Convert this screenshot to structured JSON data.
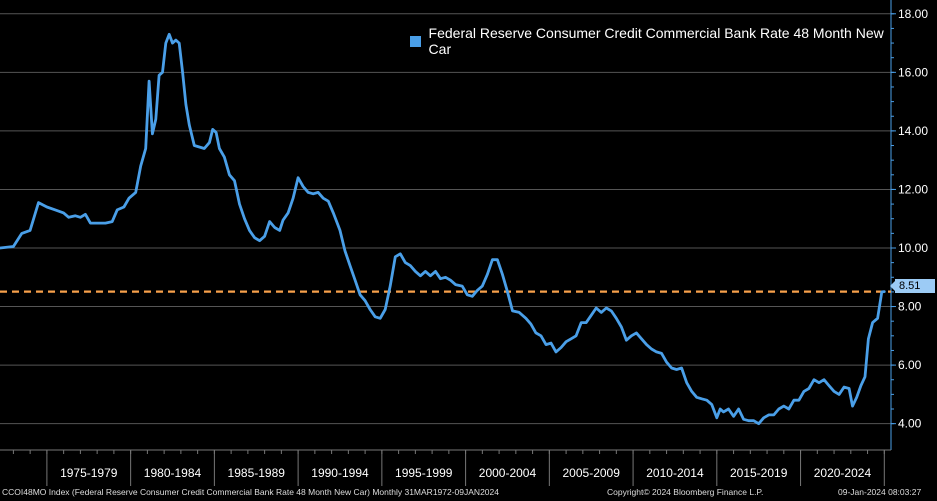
{
  "chart_data": {
    "type": "line",
    "series": [
      {
        "name": "Federal Reserve Consumer Credit Commercial Bank Rate 48 Month New Car",
        "color": "#4a9fe8",
        "points": [
          [
            1972.2,
            10.0
          ],
          [
            1973.0,
            10.05
          ],
          [
            1973.5,
            10.5
          ],
          [
            1974.0,
            10.6
          ],
          [
            1974.5,
            11.55
          ],
          [
            1975.0,
            11.4
          ],
          [
            1975.5,
            11.3
          ],
          [
            1976.0,
            11.2
          ],
          [
            1976.3,
            11.05
          ],
          [
            1976.7,
            11.1
          ],
          [
            1977.0,
            11.05
          ],
          [
            1977.3,
            11.15
          ],
          [
            1977.6,
            10.85
          ],
          [
            1978.0,
            10.85
          ],
          [
            1978.5,
            10.85
          ],
          [
            1978.9,
            10.9
          ],
          [
            1979.2,
            11.3
          ],
          [
            1979.6,
            11.4
          ],
          [
            1979.9,
            11.7
          ],
          [
            1980.3,
            11.9
          ],
          [
            1980.6,
            12.8
          ],
          [
            1980.9,
            13.4
          ],
          [
            1981.1,
            15.7
          ],
          [
            1981.3,
            13.9
          ],
          [
            1981.5,
            14.4
          ],
          [
            1981.7,
            15.9
          ],
          [
            1981.9,
            16.0
          ],
          [
            1982.1,
            17.0
          ],
          [
            1982.3,
            17.3
          ],
          [
            1982.5,
            17.0
          ],
          [
            1982.7,
            17.1
          ],
          [
            1982.9,
            17.0
          ],
          [
            1983.1,
            16.0
          ],
          [
            1983.3,
            14.9
          ],
          [
            1983.5,
            14.2
          ],
          [
            1983.8,
            13.5
          ],
          [
            1984.1,
            13.45
          ],
          [
            1984.4,
            13.4
          ],
          [
            1984.7,
            13.6
          ],
          [
            1984.9,
            14.05
          ],
          [
            1985.1,
            13.95
          ],
          [
            1985.3,
            13.4
          ],
          [
            1985.6,
            13.1
          ],
          [
            1985.9,
            12.5
          ],
          [
            1986.2,
            12.3
          ],
          [
            1986.5,
            11.5
          ],
          [
            1986.8,
            11.0
          ],
          [
            1987.1,
            10.6
          ],
          [
            1987.4,
            10.35
          ],
          [
            1987.7,
            10.25
          ],
          [
            1988.0,
            10.4
          ],
          [
            1988.3,
            10.9
          ],
          [
            1988.6,
            10.7
          ],
          [
            1988.9,
            10.6
          ],
          [
            1989.1,
            10.95
          ],
          [
            1989.4,
            11.2
          ],
          [
            1989.7,
            11.7
          ],
          [
            1990.0,
            12.4
          ],
          [
            1990.3,
            12.1
          ],
          [
            1990.6,
            11.9
          ],
          [
            1990.9,
            11.85
          ],
          [
            1991.2,
            11.9
          ],
          [
            1991.5,
            11.7
          ],
          [
            1991.8,
            11.6
          ],
          [
            1992.1,
            11.2
          ],
          [
            1992.5,
            10.6
          ],
          [
            1992.8,
            9.9
          ],
          [
            1993.1,
            9.4
          ],
          [
            1993.4,
            8.9
          ],
          [
            1993.7,
            8.4
          ],
          [
            1994.0,
            8.2
          ],
          [
            1994.3,
            7.9
          ],
          [
            1994.6,
            7.65
          ],
          [
            1994.9,
            7.6
          ],
          [
            1995.2,
            7.9
          ],
          [
            1995.5,
            8.7
          ],
          [
            1995.8,
            9.7
          ],
          [
            1996.1,
            9.8
          ],
          [
            1996.4,
            9.5
          ],
          [
            1996.7,
            9.4
          ],
          [
            1997.0,
            9.2
          ],
          [
            1997.3,
            9.05
          ],
          [
            1997.6,
            9.2
          ],
          [
            1997.9,
            9.05
          ],
          [
            1998.2,
            9.2
          ],
          [
            1998.5,
            8.95
          ],
          [
            1998.8,
            9.0
          ],
          [
            1999.1,
            8.9
          ],
          [
            1999.4,
            8.75
          ],
          [
            1999.8,
            8.7
          ],
          [
            2000.1,
            8.4
          ],
          [
            2000.4,
            8.35
          ],
          [
            2000.7,
            8.55
          ],
          [
            2001.0,
            8.7
          ],
          [
            2001.3,
            9.1
          ],
          [
            2001.6,
            9.6
          ],
          [
            2001.9,
            9.6
          ],
          [
            2002.2,
            9.1
          ],
          [
            2002.5,
            8.5
          ],
          [
            2002.8,
            7.85
          ],
          [
            2003.2,
            7.8
          ],
          [
            2003.6,
            7.6
          ],
          [
            2003.9,
            7.4
          ],
          [
            2004.2,
            7.1
          ],
          [
            2004.5,
            7.0
          ],
          [
            2004.8,
            6.7
          ],
          [
            2005.1,
            6.75
          ],
          [
            2005.4,
            6.45
          ],
          [
            2005.7,
            6.6
          ],
          [
            2006.0,
            6.8
          ],
          [
            2006.3,
            6.9
          ],
          [
            2006.6,
            7.0
          ],
          [
            2006.9,
            7.45
          ],
          [
            2007.2,
            7.45
          ],
          [
            2007.5,
            7.7
          ],
          [
            2007.8,
            7.95
          ],
          [
            2008.1,
            7.8
          ],
          [
            2008.4,
            7.95
          ],
          [
            2008.7,
            7.85
          ],
          [
            2009.0,
            7.6
          ],
          [
            2009.3,
            7.3
          ],
          [
            2009.6,
            6.85
          ],
          [
            2009.9,
            7.0
          ],
          [
            2010.2,
            7.1
          ],
          [
            2010.5,
            6.9
          ],
          [
            2010.8,
            6.7
          ],
          [
            2011.1,
            6.55
          ],
          [
            2011.4,
            6.45
          ],
          [
            2011.7,
            6.4
          ],
          [
            2012.0,
            6.1
          ],
          [
            2012.3,
            5.9
          ],
          [
            2012.6,
            5.85
          ],
          [
            2012.9,
            5.9
          ],
          [
            2013.2,
            5.4
          ],
          [
            2013.5,
            5.1
          ],
          [
            2013.8,
            4.9
          ],
          [
            2014.1,
            4.85
          ],
          [
            2014.4,
            4.8
          ],
          [
            2014.7,
            4.65
          ],
          [
            2015.0,
            4.2
          ],
          [
            2015.2,
            4.5
          ],
          [
            2015.4,
            4.4
          ],
          [
            2015.7,
            4.5
          ],
          [
            2016.0,
            4.25
          ],
          [
            2016.3,
            4.5
          ],
          [
            2016.6,
            4.15
          ],
          [
            2016.9,
            4.1
          ],
          [
            2017.2,
            4.1
          ],
          [
            2017.5,
            4.0
          ],
          [
            2017.8,
            4.2
          ],
          [
            2018.1,
            4.3
          ],
          [
            2018.4,
            4.3
          ],
          [
            2018.7,
            4.5
          ],
          [
            2019.0,
            4.6
          ],
          [
            2019.3,
            4.5
          ],
          [
            2019.6,
            4.8
          ],
          [
            2019.9,
            4.8
          ],
          [
            2020.2,
            5.1
          ],
          [
            2020.5,
            5.2
          ],
          [
            2020.8,
            5.5
          ],
          [
            2021.1,
            5.4
          ],
          [
            2021.4,
            5.5
          ],
          [
            2021.7,
            5.3
          ],
          [
            2022.0,
            5.1
          ],
          [
            2022.3,
            5.0
          ],
          [
            2022.6,
            5.25
          ],
          [
            2022.9,
            5.2
          ],
          [
            2023.1,
            4.6
          ],
          [
            2023.35,
            4.9
          ],
          [
            2023.6,
            5.3
          ],
          [
            2023.85,
            5.6
          ],
          [
            2024.05,
            6.9
          ],
          [
            2024.3,
            7.45
          ],
          [
            2024.6,
            7.6
          ],
          [
            2024.85,
            8.5
          ],
          [
            2025.0,
            8.51
          ]
        ]
      }
    ],
    "reference_line": {
      "value": 8.51,
      "label": "8.51",
      "color": "#f7a04a",
      "style": "dashed"
    },
    "xlim": [
      1972.2,
      2025.4
    ],
    "ylim": [
      3.1,
      18.3
    ],
    "yticks": [
      4,
      6,
      8,
      10,
      12,
      14,
      16,
      18
    ],
    "ytick_labels": [
      "4.00",
      "6.00",
      "8.00",
      "10.00",
      "12.00",
      "14.00",
      "16.00",
      "18.00"
    ],
    "xticks": [
      {
        "label": "1975-1979",
        "start": 1975,
        "end": 1980
      },
      {
        "label": "1980-1984",
        "start": 1980,
        "end": 1985
      },
      {
        "label": "1985-1989",
        "start": 1985,
        "end": 1990
      },
      {
        "label": "1990-1994",
        "start": 1990,
        "end": 1995
      },
      {
        "label": "1995-1999",
        "start": 1995,
        "end": 2000
      },
      {
        "label": "2000-2004",
        "start": 2000,
        "end": 2005
      },
      {
        "label": "2005-2009",
        "start": 2005,
        "end": 2010
      },
      {
        "label": "2010-2014",
        "start": 2010,
        "end": 2015
      },
      {
        "label": "2015-2019",
        "start": 2015,
        "end": 2020
      },
      {
        "label": "2020-2024",
        "start": 2020,
        "end": 2025
      }
    ],
    "grid": true,
    "legend": "top-right",
    "axis_side": "right",
    "colors": {
      "background": "#000000",
      "grid": "#555555",
      "axis": "#4a9fe8",
      "text": "#ffffff"
    }
  },
  "legend": {
    "label": "Federal Reserve Consumer Credit Commercial Bank Rate 48 Month New Car",
    "color": "#4a9fe8"
  },
  "last_value": "8.51",
  "footer": {
    "left": "CCOI48MO Index (Federal Reserve Consumer Credit Commercial Bank Rate 48 Month New Car)  Monthly 31MAR1972-09JAN2024",
    "middle": "Copyright© 2024 Bloomberg Finance L.P.",
    "right": "09-Jan-2024 08:03:27"
  }
}
